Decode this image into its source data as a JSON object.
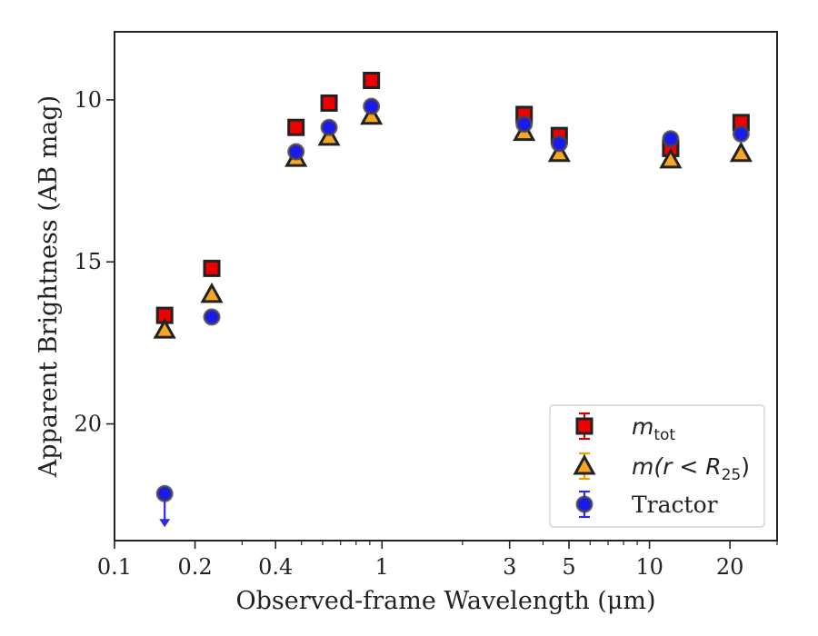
{
  "chart_data": {
    "type": "scatter",
    "title": "",
    "xlabel": "Observed-frame Wavelength (μm)",
    "ylabel": "Apparent Brightness (AB mag)",
    "x_scale": "log",
    "y_inverted": true,
    "xlim": [
      0.1,
      30
    ],
    "ylim": [
      23.6,
      7.9
    ],
    "x_ticks": [
      {
        "value": 0.1,
        "label": "0.1"
      },
      {
        "value": 0.2,
        "label": "0.2"
      },
      {
        "value": 0.4,
        "label": "0.4"
      },
      {
        "value": 1,
        "label": "1"
      },
      {
        "value": 3,
        "label": "3"
      },
      {
        "value": 5,
        "label": "5"
      },
      {
        "value": 10,
        "label": "10"
      },
      {
        "value": 20,
        "label": "20"
      }
    ],
    "y_ticks": [
      {
        "value": 10,
        "label": "10"
      },
      {
        "value": 15,
        "label": "15"
      },
      {
        "value": 20,
        "label": "20"
      }
    ],
    "grid": false,
    "legend_position": "lower-right",
    "series": [
      {
        "name": "m_tot",
        "legend_main": "m",
        "legend_sub": "tot",
        "marker": "square",
        "color": "#ee0000",
        "edgecolor": "#222222",
        "errcolor": "#cc0000",
        "points": [
          {
            "x": 0.154,
            "y": 16.65
          },
          {
            "x": 0.231,
            "y": 15.2
          },
          {
            "x": 0.477,
            "y": 10.85
          },
          {
            "x": 0.634,
            "y": 10.1
          },
          {
            "x": 0.913,
            "y": 9.4
          },
          {
            "x": 3.4,
            "y": 10.45
          },
          {
            "x": 4.6,
            "y": 11.1
          },
          {
            "x": 12.0,
            "y": 11.5
          },
          {
            "x": 22.0,
            "y": 10.7
          }
        ]
      },
      {
        "name": "m(r<R25)",
        "legend_main": "m(r < R",
        "legend_sub": "25",
        "legend_close": ")",
        "marker": "triangle",
        "color": "#f5a623",
        "edgecolor": "#222222",
        "errcolor": "#e6a000",
        "points": [
          {
            "x": 0.154,
            "y": 17.1
          },
          {
            "x": 0.231,
            "y": 16.0
          },
          {
            "x": 0.477,
            "y": 11.8
          },
          {
            "x": 0.634,
            "y": 11.15
          },
          {
            "x": 0.913,
            "y": 10.5
          },
          {
            "x": 3.4,
            "y": 11.0
          },
          {
            "x": 4.6,
            "y": 11.65
          },
          {
            "x": 12.0,
            "y": 11.85
          },
          {
            "x": 22.0,
            "y": 11.65
          }
        ]
      },
      {
        "name": "Tractor",
        "legend_main": "Tractor",
        "marker": "circle",
        "color": "#1a1aee",
        "edgecolor": "#444444",
        "errcolor": "#2a2af0",
        "points": [
          {
            "x": 0.154,
            "y": 22.15,
            "upper_limit": true
          },
          {
            "x": 0.231,
            "y": 16.7
          },
          {
            "x": 0.477,
            "y": 11.6
          },
          {
            "x": 0.634,
            "y": 10.85
          },
          {
            "x": 0.913,
            "y": 10.2
          },
          {
            "x": 3.4,
            "y": 10.75
          },
          {
            "x": 4.6,
            "y": 11.35
          },
          {
            "x": 12.0,
            "y": 11.2
          },
          {
            "x": 22.0,
            "y": 11.05
          }
        ]
      }
    ]
  }
}
